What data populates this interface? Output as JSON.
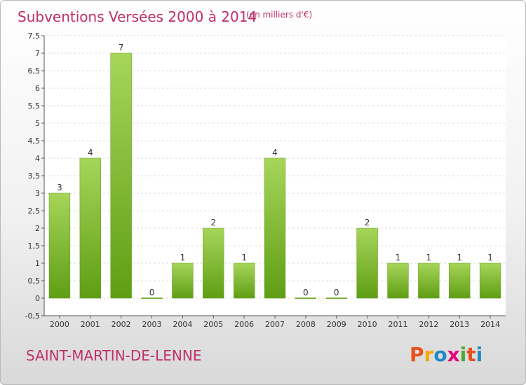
{
  "header": {
    "title": "Subventions Versées 2000 à 2014",
    "unit_note": "(en milliers d'€)"
  },
  "footer": {
    "commune": "SAINT-MARTIN-DE-LENNE",
    "logo": {
      "letters": [
        "P",
        "r",
        "o",
        "x",
        "i",
        "t",
        "i"
      ],
      "colors": [
        "#e94e1b",
        "#f2a900",
        "#1e88c8",
        "#e4007c",
        "#4aa832",
        "#e94e1b",
        "#1e88c8"
      ]
    }
  },
  "colors": {
    "bar_light": "#a6d55a",
    "bar_dark": "#5f9e14",
    "accent": "#c0306a"
  },
  "chart_data": {
    "type": "bar",
    "title": "Subventions Versées 2000 à 2014",
    "subtitle": "(en milliers d'€)",
    "categories": [
      "2000",
      "2001",
      "2002",
      "2003",
      "2004",
      "2005",
      "2006",
      "2007",
      "2008",
      "2009",
      "2010",
      "2011",
      "2012",
      "2013",
      "2014"
    ],
    "values": [
      3,
      4,
      7,
      0,
      1,
      2,
      1,
      4,
      0,
      0,
      2,
      1,
      1,
      1,
      1
    ],
    "value_labels": [
      "3",
      "4",
      "7",
      "0",
      "1",
      "2",
      "1",
      "4",
      "0",
      "0",
      "2",
      "1",
      "1",
      "1",
      "1"
    ],
    "yticks": [
      "-0,5",
      "0",
      "0,5",
      "1",
      "1,5",
      "2",
      "2,5",
      "3",
      "3,5",
      "4",
      "4,5",
      "5",
      "5,5",
      "6",
      "6,5",
      "7",
      "7,5"
    ],
    "ytick_values": [
      -0.5,
      0,
      0.5,
      1,
      1.5,
      2,
      2.5,
      3,
      3.5,
      4,
      4.5,
      5,
      5.5,
      6,
      6.5,
      7,
      7.5
    ],
    "ylim": [
      -0.5,
      7.5
    ],
    "grid": true,
    "xlabel": "",
    "ylabel": ""
  }
}
